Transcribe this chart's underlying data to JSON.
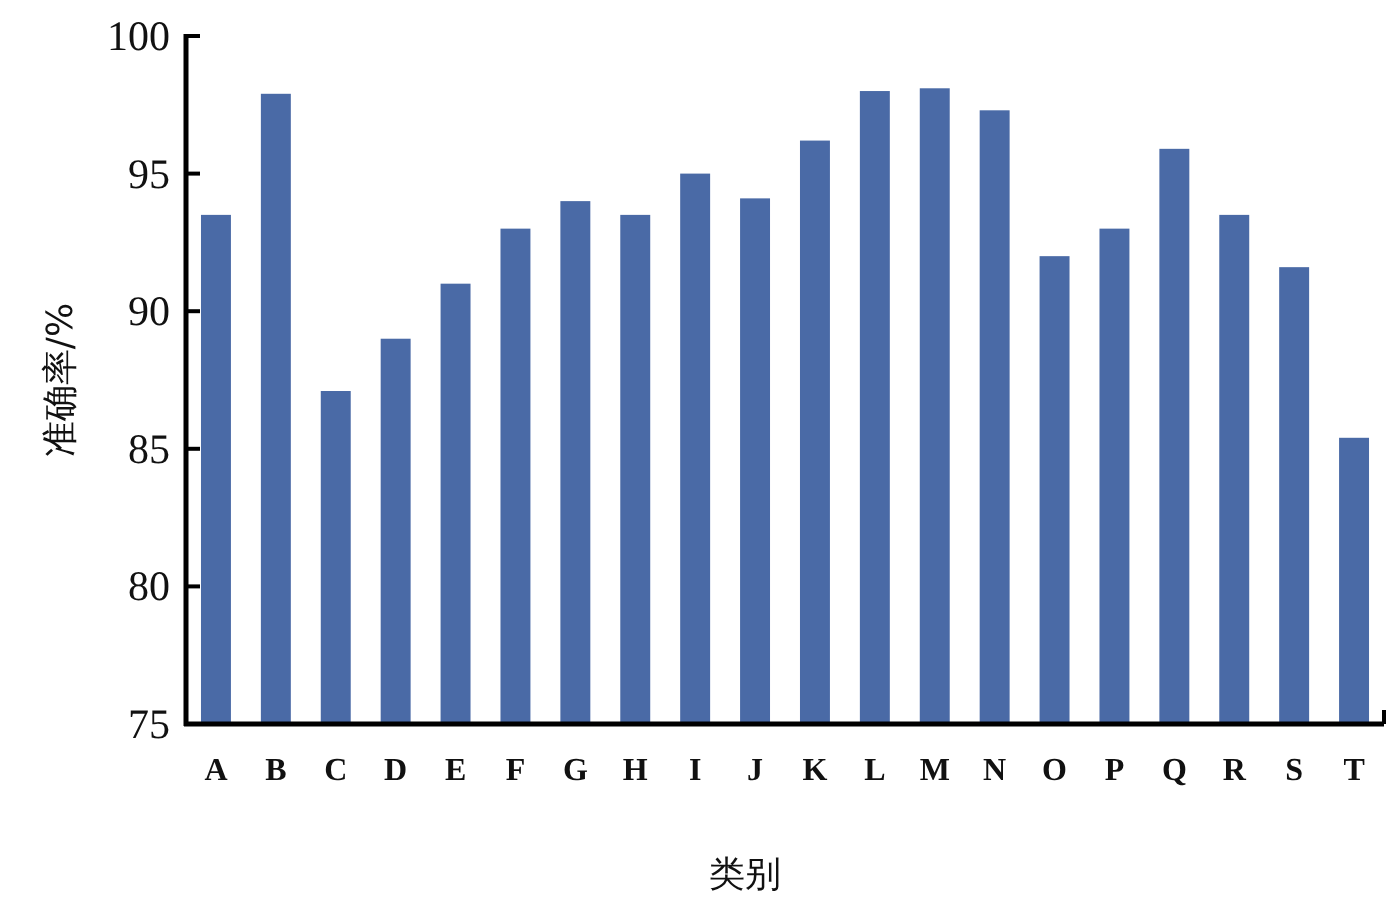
{
  "chart_data": {
    "type": "bar",
    "xlabel": "类别",
    "ylabel": "准确率/%",
    "categories": [
      "A",
      "B",
      "C",
      "D",
      "E",
      "F",
      "G",
      "H",
      "I",
      "J",
      "K",
      "L",
      "M",
      "N",
      "O",
      "P",
      "Q",
      "R",
      "S",
      "T"
    ],
    "values": [
      93.5,
      97.9,
      87.1,
      89.0,
      91.0,
      93.0,
      94.0,
      93.5,
      95.0,
      94.1,
      96.2,
      98.0,
      98.1,
      97.3,
      92.0,
      93.0,
      95.9,
      93.5,
      91.6,
      85.4
    ],
    "color": "#4a6aa6",
    "ylim": [
      75,
      100
    ],
    "yticks": [
      75,
      80,
      85,
      90,
      95,
      100
    ],
    "grid": false
  }
}
